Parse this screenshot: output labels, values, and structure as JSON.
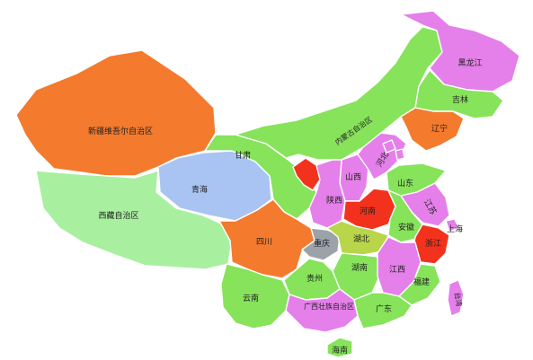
{
  "colors": {
    "orange": "#F47A2E",
    "lime": "#86E35A",
    "light_green": "#A8F0A0",
    "light_blue": "#A9C4F2",
    "magenta": "#E57FEA",
    "olive": "#B9D64A",
    "grey": "#9BA2A8",
    "red": "#F2321C"
  },
  "provinces": [
    {
      "key": "xinjiang",
      "label": "新疆维吾尔自治区",
      "color": "orange"
    },
    {
      "key": "xizang",
      "label": "西藏自治区",
      "color": "light_green"
    },
    {
      "key": "qinghai",
      "label": "青海",
      "color": "light_blue"
    },
    {
      "key": "gansu",
      "label": "甘肃",
      "color": "lime"
    },
    {
      "key": "neimenggu",
      "label": "内蒙古自治区",
      "color": "lime"
    },
    {
      "key": "heilongjiang",
      "label": "黑龙江",
      "color": "magenta"
    },
    {
      "key": "jilin",
      "label": "吉林",
      "color": "lime"
    },
    {
      "key": "liaoning",
      "label": "辽宁",
      "color": "orange"
    },
    {
      "key": "ningxia",
      "label": "宁夏",
      "color": "red"
    },
    {
      "key": "shanxi",
      "label": "山西",
      "color": "magenta"
    },
    {
      "key": "hebei",
      "label": "河北",
      "color": "magenta"
    },
    {
      "key": "shandong",
      "label": "山东",
      "color": "lime"
    },
    {
      "key": "shaanxi",
      "label": "陕西",
      "color": "magenta"
    },
    {
      "key": "henan",
      "label": "河南",
      "color": "red"
    },
    {
      "key": "jiangsu",
      "label": "江苏",
      "color": "magenta"
    },
    {
      "key": "anhui",
      "label": "安徽",
      "color": "lime"
    },
    {
      "key": "shanghai",
      "label": "上海",
      "color": "magenta"
    },
    {
      "key": "sichuan",
      "label": "四川",
      "color": "orange"
    },
    {
      "key": "chongqing",
      "label": "重庆",
      "color": "grey"
    },
    {
      "key": "hubei",
      "label": "湖北",
      "color": "olive"
    },
    {
      "key": "zhejiang",
      "label": "浙江",
      "color": "red"
    },
    {
      "key": "hunan",
      "label": "湖南",
      "color": "lime"
    },
    {
      "key": "jiangxi",
      "label": "江西",
      "color": "magenta"
    },
    {
      "key": "guizhou",
      "label": "贵州",
      "color": "lime"
    },
    {
      "key": "fujian",
      "label": "福建",
      "color": "lime"
    },
    {
      "key": "yunnan",
      "label": "云南",
      "color": "lime"
    },
    {
      "key": "guangxi",
      "label": "广西壮族自治区",
      "color": "magenta"
    },
    {
      "key": "guangdong",
      "label": "广东",
      "color": "lime"
    },
    {
      "key": "taiwan",
      "label": "台湾",
      "color": "magenta"
    },
    {
      "key": "hainan",
      "label": "海南",
      "color": "lime"
    },
    {
      "key": "beijing",
      "label": "",
      "color": "magenta"
    },
    {
      "key": "tianjin",
      "label": "",
      "color": "magenta"
    }
  ]
}
